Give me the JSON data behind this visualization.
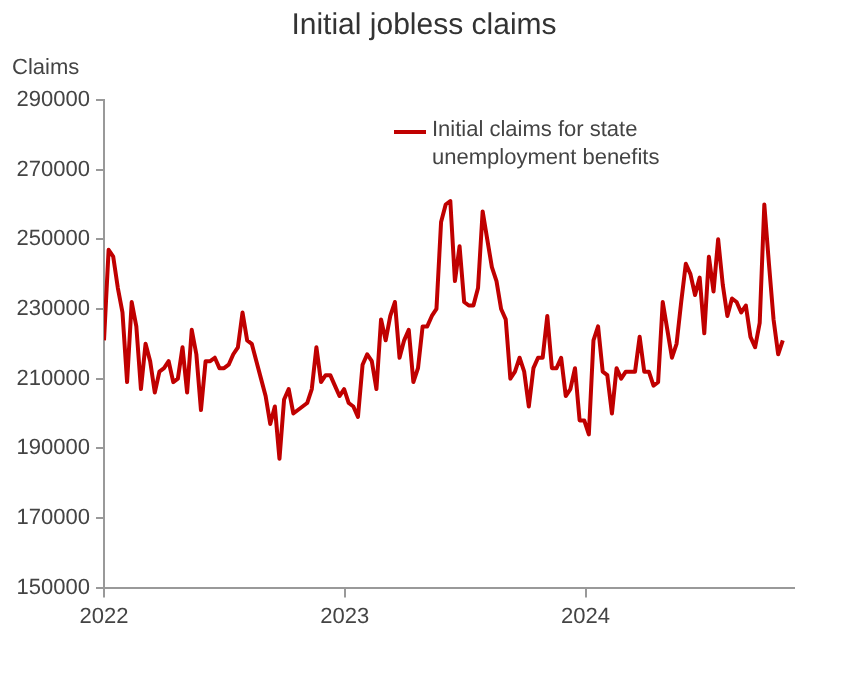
{
  "chart_data": {
    "type": "line",
    "title": "Initial jobless claims",
    "ylabel": "Claims",
    "xlim": [
      "2022-01-01",
      "2024-11-12"
    ],
    "xticks": [
      {
        "value": "2022-01-01",
        "label": "2022"
      },
      {
        "value": "2023-01-01",
        "label": "2023"
      },
      {
        "value": "2024-01-01",
        "label": "2024"
      }
    ],
    "ylim": [
      150000,
      290000
    ],
    "yticks": [
      150000,
      170000,
      190000,
      210000,
      230000,
      250000,
      270000,
      290000
    ],
    "grid": false,
    "legend": "top right",
    "marker": "none",
    "line_style": "solid",
    "x": [
      "2022-01-01",
      "2022-01-08",
      "2022-01-15",
      "2022-01-22",
      "2022-01-29",
      "2022-02-05",
      "2022-02-12",
      "2022-02-19",
      "2022-02-26",
      "2022-03-05",
      "2022-03-12",
      "2022-03-19",
      "2022-03-26",
      "2022-04-02",
      "2022-04-09",
      "2022-04-16",
      "2022-04-23",
      "2022-04-30",
      "2022-05-07",
      "2022-05-14",
      "2022-05-21",
      "2022-05-28",
      "2022-06-04",
      "2022-06-11",
      "2022-06-18",
      "2022-06-25",
      "2022-07-02",
      "2022-07-09",
      "2022-07-16",
      "2022-07-23",
      "2022-07-30",
      "2022-08-06",
      "2022-08-13",
      "2022-08-20",
      "2022-08-27",
      "2022-09-03",
      "2022-09-10",
      "2022-09-17",
      "2022-09-24",
      "2022-10-01",
      "2022-10-08",
      "2022-10-15",
      "2022-10-22",
      "2022-10-29",
      "2022-11-05",
      "2022-11-12",
      "2022-11-19",
      "2022-11-26",
      "2022-12-03",
      "2022-12-10",
      "2022-12-17",
      "2022-12-24",
      "2022-12-31",
      "2023-01-07",
      "2023-01-14",
      "2023-01-21",
      "2023-01-28",
      "2023-02-04",
      "2023-02-11",
      "2023-02-18",
      "2023-02-25",
      "2023-03-04",
      "2023-03-11",
      "2023-03-18",
      "2023-03-25",
      "2023-04-01",
      "2023-04-08",
      "2023-04-15",
      "2023-04-22",
      "2023-04-29",
      "2023-05-06",
      "2023-05-13",
      "2023-05-20",
      "2023-05-27",
      "2023-06-03",
      "2023-06-10",
      "2023-06-17",
      "2023-06-24",
      "2023-07-01",
      "2023-07-08",
      "2023-07-15",
      "2023-07-22",
      "2023-07-29",
      "2023-08-05",
      "2023-08-12",
      "2023-08-19",
      "2023-08-26",
      "2023-09-02",
      "2023-09-09",
      "2023-09-16",
      "2023-09-23",
      "2023-09-30",
      "2023-10-07",
      "2023-10-14",
      "2023-10-21",
      "2023-10-28",
      "2023-11-04",
      "2023-11-11",
      "2023-11-18",
      "2023-11-25",
      "2023-12-02",
      "2023-12-09",
      "2023-12-16",
      "2023-12-23",
      "2023-12-30",
      "2024-01-06",
      "2024-01-13",
      "2024-01-20",
      "2024-01-27",
      "2024-02-03",
      "2024-02-10",
      "2024-02-17",
      "2024-02-24",
      "2024-03-02",
      "2024-03-09",
      "2024-03-16",
      "2024-03-23",
      "2024-03-30",
      "2024-04-06",
      "2024-04-13",
      "2024-04-20",
      "2024-04-27",
      "2024-05-04",
      "2024-05-11",
      "2024-05-18",
      "2024-05-25",
      "2024-06-01",
      "2024-06-08",
      "2024-06-15",
      "2024-06-22",
      "2024-06-29",
      "2024-07-06",
      "2024-07-13",
      "2024-07-20",
      "2024-07-27",
      "2024-08-03",
      "2024-08-10",
      "2024-08-17",
      "2024-08-24",
      "2024-08-31",
      "2024-09-07",
      "2024-09-14",
      "2024-09-21",
      "2024-09-28",
      "2024-10-05",
      "2024-10-12",
      "2024-10-19",
      "2024-10-26"
    ],
    "series": [
      {
        "name": "Initial claims for state unemployment benefits",
        "color": "#c00000",
        "values": [
          221000,
          247000,
          245000,
          236000,
          229000,
          209000,
          232000,
          225000,
          207000,
          220000,
          215000,
          206000,
          212000,
          213000,
          215000,
          209000,
          210000,
          219000,
          206000,
          224000,
          217000,
          201000,
          215000,
          215000,
          216000,
          213000,
          213000,
          214000,
          217000,
          219000,
          229000,
          221000,
          220000,
          215000,
          210000,
          205000,
          197000,
          202000,
          187000,
          204000,
          207000,
          200000,
          201000,
          202000,
          203000,
          207000,
          219000,
          209000,
          211000,
          211000,
          208000,
          205000,
          207000,
          203000,
          202000,
          199000,
          214000,
          217000,
          215000,
          207000,
          227000,
          221000,
          228000,
          232000,
          216000,
          221000,
          224000,
          209000,
          213000,
          225000,
          225000,
          228000,
          230000,
          255000,
          260000,
          261000,
          238000,
          248000,
          232000,
          231000,
          231000,
          236000,
          258000,
          250000,
          242000,
          238000,
          230000,
          227000,
          210000,
          212000,
          216000,
          212000,
          202000,
          213000,
          216000,
          216000,
          228000,
          213000,
          213000,
          216000,
          205000,
          207000,
          213000,
          198000,
          198000,
          194000,
          221000,
          225000,
          212000,
          211000,
          200000,
          213000,
          210000,
          212000,
          212000,
          212000,
          222000,
          212000,
          212000,
          208000,
          209000,
          232000,
          224000,
          216000,
          220000,
          232000,
          243000,
          240000,
          234000,
          239000,
          223000,
          245000,
          235000,
          250000,
          237000,
          228000,
          233000,
          232000,
          229000,
          231000,
          222000,
          219000,
          226000,
          260000,
          243000,
          227000,
          217000,
          221000
        ]
      }
    ]
  }
}
